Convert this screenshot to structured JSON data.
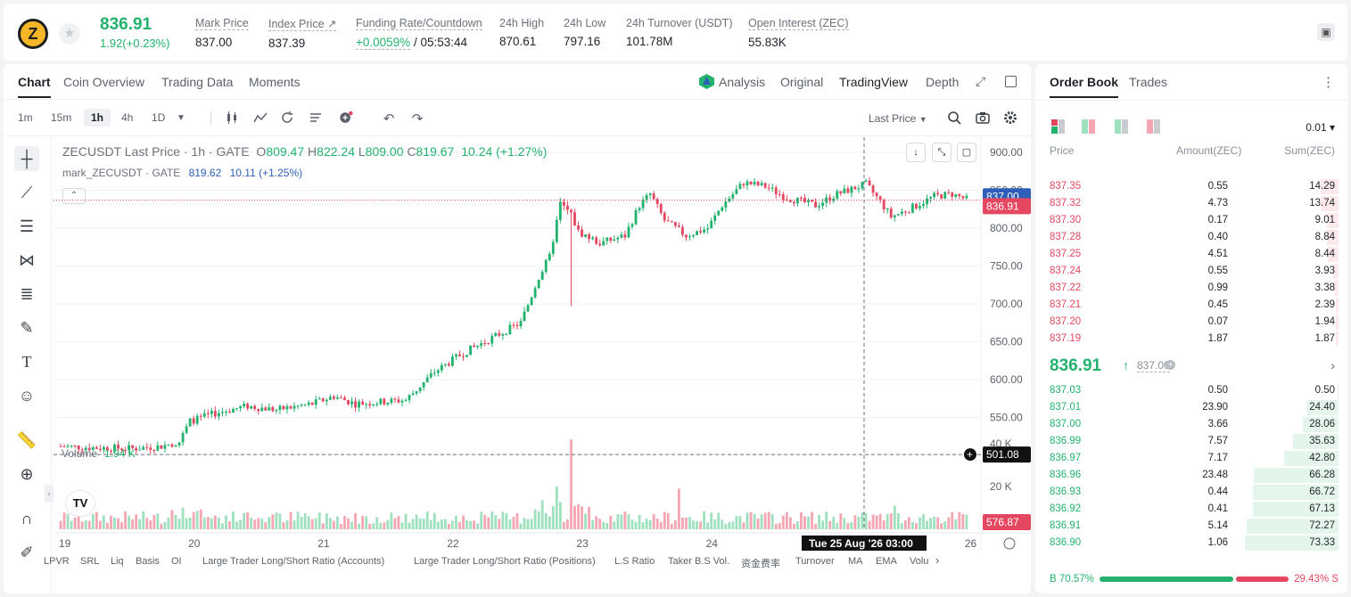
{
  "header": {
    "last_price": "836.91",
    "change": "1.92(+0.23%)",
    "stats": [
      {
        "label": "Mark Price",
        "value": "837.00"
      },
      {
        "label": "Index Price ↗",
        "value": "837.39"
      },
      {
        "label": "Funding Rate/Countdown",
        "value_up": "+0.0059%",
        "value_rest": " / 05:53:44"
      },
      {
        "label": "24h High",
        "value": "870.61"
      },
      {
        "label": "24h Low",
        "value": "797.16"
      },
      {
        "label": "24h Turnover (USDT)",
        "value": "101.78M"
      },
      {
        "label": "Open Interest (ZEC)",
        "value": "55.83K"
      }
    ],
    "coin_symbol": "Z",
    "fav_icon": "★"
  },
  "chart_tabs": [
    "Chart",
    "Coin Overview",
    "Trading Data",
    "Moments"
  ],
  "chart_views": [
    "Analysis",
    "Original",
    "TradingView",
    "Depth"
  ],
  "timeframes": [
    "1m",
    "15m",
    "1h",
    "4h",
    "1D"
  ],
  "active_timeframe": "1h",
  "last_price_selector": "Last Price",
  "legend": {
    "symbol": "ZECUSDT Last Price · 1h · GATE",
    "o_label": "O",
    "o": "809.47",
    "h_label": "H",
    "h": "822.24",
    "l_label": "L",
    "l": "809.00",
    "c_label": "C",
    "c": "819.67",
    "chg": "10.24 (+1.27%)",
    "mark_label": "mark_ZECUSDT · GATE",
    "mark_value": "819.62",
    "mark_chg": "10.11 (+1.25%)"
  },
  "volume_legend": {
    "label": "Volume",
    "value": "1.94 K"
  },
  "price_axis": [
    "900.00",
    "850.00",
    "800.00",
    "750.00",
    "700.00",
    "650.00",
    "600.00",
    "550.00"
  ],
  "volume_axis": [
    "40 K",
    "20 K"
  ],
  "price_tags": {
    "mark": "837.00",
    "last": "836.91",
    "cursor": "501.08",
    "volume": "576.87"
  },
  "time_axis": [
    "19",
    "20",
    "21",
    "22",
    "23",
    "24",
    "26"
  ],
  "crosshair_time": "Tue 25 Aug '26   03:00",
  "indicators": [
    "LPVR",
    "SRL",
    "Liq",
    "Basis",
    "OI",
    "Large Trader Long/Short Ratio (Accounts)",
    "Large Trader Long/Short Ratio (Positions)",
    "L.S Ratio",
    "Taker B.S Vol.",
    "资金费率",
    "Turnover",
    "MA",
    "EMA",
    "Volu"
  ],
  "tv_logo": "TV",
  "colors": {
    "up": "#23b26d",
    "down": "#e4475f",
    "up_vol": "#9fe0bf",
    "down_vol": "#f4a6b3"
  },
  "orderbook": {
    "tabs": [
      "Order Book",
      "Trades"
    ],
    "precision": "0.01 ▾",
    "columns": [
      "Price",
      "Amount(ZEC)",
      "Sum(ZEC)"
    ],
    "asks": [
      {
        "price": "837.35",
        "amount": "0.55",
        "sum": "14.29",
        "fill": 0.195
      },
      {
        "price": "837.32",
        "amount": "4.73",
        "sum": "13.74",
        "fill": 0.188
      },
      {
        "price": "837.30",
        "amount": "0.17",
        "sum": "9.01",
        "fill": 0.123
      },
      {
        "price": "837.28",
        "amount": "0.40",
        "sum": "8.84",
        "fill": 0.121
      },
      {
        "price": "837.25",
        "amount": "4.51",
        "sum": "8.44",
        "fill": 0.115
      },
      {
        "price": "837.24",
        "amount": "0.55",
        "sum": "3.93",
        "fill": 0.054
      },
      {
        "price": "837.22",
        "amount": "0.99",
        "sum": "3.38",
        "fill": 0.046
      },
      {
        "price": "837.21",
        "amount": "0.45",
        "sum": "2.39",
        "fill": 0.033
      },
      {
        "price": "837.20",
        "amount": "0.07",
        "sum": "1.94",
        "fill": 0.027
      },
      {
        "price": "837.19",
        "amount": "1.87",
        "sum": "1.87",
        "fill": 0.026
      }
    ],
    "mid_price": "836.91",
    "mid_arrow": "↑",
    "mid_mark": "837.00",
    "bids": [
      {
        "price": "837.03",
        "amount": "0.50",
        "sum": "0.50",
        "fill": 0.007
      },
      {
        "price": "837.01",
        "amount": "23.90",
        "sum": "24.40",
        "fill": 0.333
      },
      {
        "price": "837.00",
        "amount": "3.66",
        "sum": "28.06",
        "fill": 0.383
      },
      {
        "price": "836.99",
        "amount": "7.57",
        "sum": "35.63",
        "fill": 0.486
      },
      {
        "price": "836.97",
        "amount": "7.17",
        "sum": "42.80",
        "fill": 0.584
      },
      {
        "price": "836.96",
        "amount": "23.48",
        "sum": "66.28",
        "fill": 0.904
      },
      {
        "price": "836.93",
        "amount": "0.44",
        "sum": "66.72",
        "fill": 0.91
      },
      {
        "price": "836.92",
        "amount": "0.41",
        "sum": "67.13",
        "fill": 0.915
      },
      {
        "price": "836.91",
        "amount": "5.14",
        "sum": "72.27",
        "fill": 0.985
      },
      {
        "price": "836.90",
        "amount": "1.06",
        "sum": "73.33",
        "fill": 1.0
      }
    ],
    "buy_ratio_label": "B 70.57%",
    "sell_ratio_label": "29.43% S",
    "buy_ratio": 0.7057
  },
  "chart_data": {
    "type": "candlestick",
    "title": "ZECUSDT Last Price · 1h · GATE",
    "ylim": [
      520,
      920
    ],
    "vol_ylim": [
      0,
      50000
    ],
    "days": [
      "19",
      "20",
      "21",
      "22",
      "23",
      "24",
      "25",
      "26"
    ],
    "anchors": [
      [
        0,
        512
      ],
      [
        10,
        510
      ],
      [
        20,
        509
      ],
      [
        28,
        512
      ],
      [
        33,
        518
      ],
      [
        36,
        545
      ],
      [
        44,
        557
      ],
      [
        52,
        565
      ],
      [
        60,
        560
      ],
      [
        70,
        568
      ],
      [
        76,
        578
      ],
      [
        82,
        568
      ],
      [
        96,
        573
      ],
      [
        104,
        610
      ],
      [
        112,
        635
      ],
      [
        122,
        660
      ],
      [
        128,
        675
      ],
      [
        133,
        735
      ],
      [
        136,
        762
      ],
      [
        139,
        832
      ],
      [
        142,
        818
      ],
      [
        144,
        795
      ],
      [
        150,
        780
      ],
      [
        157,
        790
      ],
      [
        161,
        830
      ],
      [
        164,
        845
      ],
      [
        168,
        810
      ],
      [
        174,
        790
      ],
      [
        180,
        800
      ],
      [
        184,
        830
      ],
      [
        190,
        860
      ],
      [
        196,
        855
      ],
      [
        202,
        840
      ],
      [
        210,
        830
      ],
      [
        216,
        845
      ],
      [
        224,
        858
      ],
      [
        228,
        835
      ],
      [
        231,
        815
      ],
      [
        236,
        825
      ],
      [
        243,
        842
      ],
      [
        248,
        845
      ],
      [
        252,
        838
      ]
    ],
    "volume_spikes": [
      [
        138,
        20000
      ],
      [
        142,
        42000
      ],
      [
        172,
        19000
      ],
      [
        232,
        11000
      ]
    ]
  }
}
